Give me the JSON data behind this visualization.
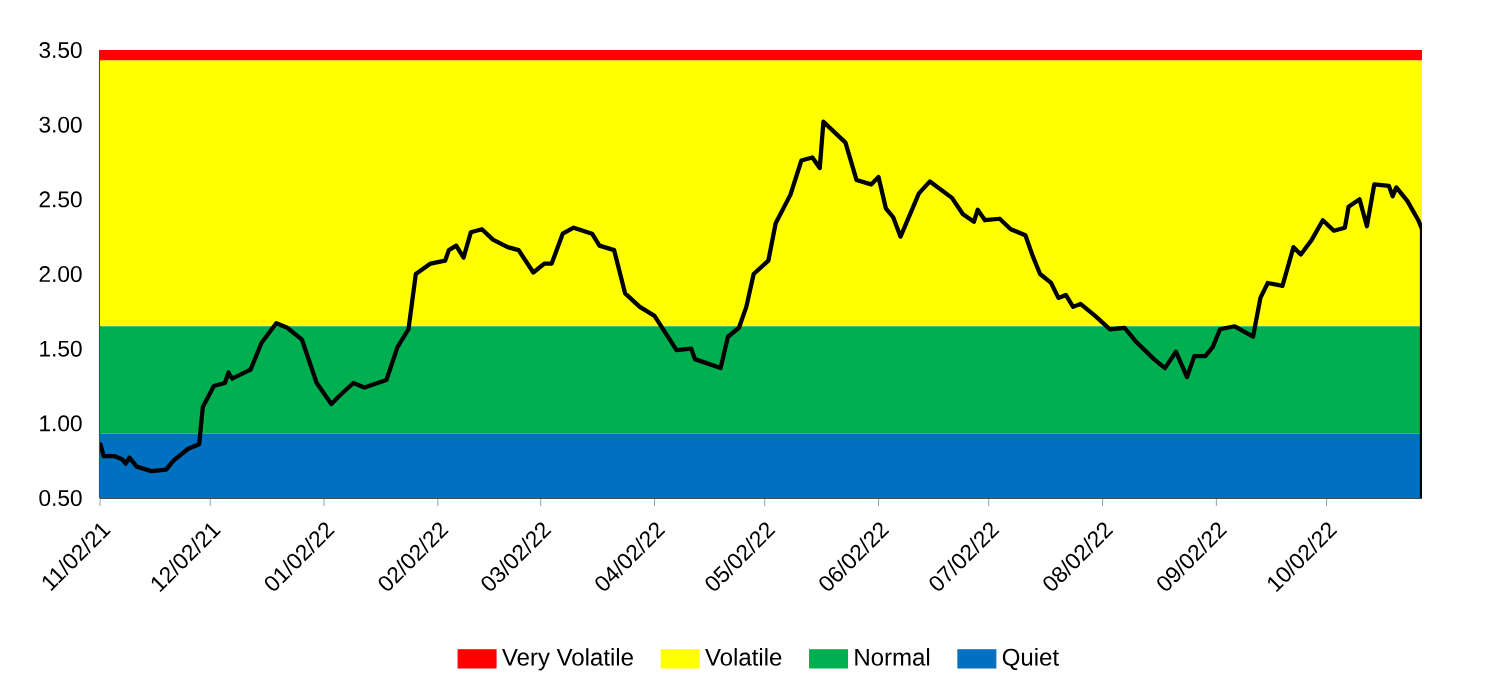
{
  "chart_data": {
    "type": "line",
    "x": [
      "2021-11-02",
      "2021-11-03",
      "2021-11-06",
      "2021-11-08",
      "2021-11-09",
      "2021-11-10",
      "2021-11-12",
      "2021-11-16",
      "2021-11-20",
      "2021-11-22",
      "2021-11-26",
      "2021-11-29",
      "2021-11-30",
      "2021-12-03",
      "2021-12-06",
      "2021-12-07",
      "2021-12-08",
      "2021-12-13",
      "2021-12-16",
      "2021-12-20",
      "2021-12-23",
      "2021-12-27",
      "2021-12-31",
      "2022-01-04",
      "2022-01-06",
      "2022-01-10",
      "2022-01-13",
      "2022-01-19",
      "2022-01-22",
      "2022-01-25",
      "2022-01-27",
      "2022-01-31",
      "2022-02-04",
      "2022-02-05",
      "2022-02-07",
      "2022-02-09",
      "2022-02-11",
      "2022-02-14",
      "2022-02-17",
      "2022-02-21",
      "2022-02-24",
      "2022-02-28",
      "2022-03-03",
      "2022-03-05",
      "2022-03-08",
      "2022-03-11",
      "2022-03-16",
      "2022-03-18",
      "2022-03-22",
      "2022-03-25",
      "2022-03-29",
      "2022-04-02",
      "2022-04-08",
      "2022-04-12",
      "2022-04-13",
      "2022-04-20",
      "2022-04-22",
      "2022-04-25",
      "2022-04-27",
      "2022-04-29",
      "2022-05-03",
      "2022-05-05",
      "2022-05-09",
      "2022-05-12",
      "2022-05-15",
      "2022-05-17",
      "2022-05-18",
      "2022-05-24",
      "2022-05-27",
      "2022-05-31",
      "2022-06-02",
      "2022-06-04",
      "2022-06-06",
      "2022-06-08",
      "2022-06-13",
      "2022-06-16",
      "2022-06-22",
      "2022-06-25",
      "2022-06-28",
      "2022-06-29",
      "2022-07-01",
      "2022-07-05",
      "2022-07-08",
      "2022-07-12",
      "2022-07-14",
      "2022-07-16",
      "2022-07-19",
      "2022-07-21",
      "2022-07-23",
      "2022-07-25",
      "2022-07-27",
      "2022-07-31",
      "2022-08-04",
      "2022-08-08",
      "2022-08-11",
      "2022-08-16",
      "2022-08-19",
      "2022-08-22",
      "2022-08-25",
      "2022-08-27",
      "2022-08-30",
      "2022-09-01",
      "2022-09-03",
      "2022-09-07",
      "2022-09-12",
      "2022-09-14",
      "2022-09-16",
      "2022-09-20",
      "2022-09-23",
      "2022-09-25",
      "2022-09-28",
      "2022-10-01",
      "2022-10-04",
      "2022-10-07",
      "2022-10-08",
      "2022-10-11",
      "2022-10-13",
      "2022-10-15",
      "2022-10-19",
      "2022-10-20",
      "2022-10-21",
      "2022-10-24",
      "2022-10-27",
      "2022-10-28",
      "2022-10-28"
    ],
    "series": [
      {
        "color": "#000000",
        "values": [
          0.87,
          0.78,
          0.78,
          0.76,
          0.73,
          0.77,
          0.71,
          0.68,
          0.69,
          0.75,
          0.83,
          0.86,
          1.11,
          1.25,
          1.27,
          1.34,
          1.3,
          1.36,
          1.54,
          1.67,
          1.64,
          1.56,
          1.27,
          1.13,
          1.18,
          1.27,
          1.24,
          1.29,
          1.51,
          1.63,
          2.0,
          2.07,
          2.09,
          2.16,
          2.19,
          2.11,
          2.28,
          2.3,
          2.23,
          2.18,
          2.16,
          2.01,
          2.07,
          2.07,
          2.27,
          2.31,
          2.27,
          2.19,
          2.16,
          1.87,
          1.78,
          1.72,
          1.49,
          1.5,
          1.43,
          1.37,
          1.58,
          1.64,
          1.78,
          2.0,
          2.09,
          2.34,
          2.53,
          2.76,
          2.78,
          2.71,
          3.02,
          2.88,
          2.63,
          2.6,
          2.65,
          2.44,
          2.38,
          2.25,
          2.54,
          2.62,
          2.51,
          2.4,
          2.35,
          2.43,
          2.36,
          2.37,
          2.3,
          2.26,
          2.12,
          2.0,
          1.94,
          1.84,
          1.86,
          1.78,
          1.8,
          1.72,
          1.63,
          1.64,
          1.55,
          1.43,
          1.37,
          1.48,
          1.31,
          1.45,
          1.45,
          1.51,
          1.63,
          1.65,
          1.58,
          1.84,
          1.94,
          1.92,
          2.18,
          2.13,
          2.23,
          2.36,
          2.29,
          2.31,
          2.45,
          2.5,
          2.32,
          2.6,
          2.59,
          2.52,
          2.58,
          2.49,
          2.36,
          2.3,
          0.5
        ]
      }
    ],
    "xlim": [
      "2021-11-02",
      "2022-10-28"
    ],
    "xticks": [
      {
        "value": "2021-11-02",
        "label": "11/02/21"
      },
      {
        "value": "2021-12-02",
        "label": "12/02/21"
      },
      {
        "value": "2022-01-02",
        "label": "01/02/22"
      },
      {
        "value": "2022-02-02",
        "label": "02/02/22"
      },
      {
        "value": "2022-03-02",
        "label": "03/02/22"
      },
      {
        "value": "2022-04-02",
        "label": "04/02/22"
      },
      {
        "value": "2022-05-02",
        "label": "05/02/22"
      },
      {
        "value": "2022-06-02",
        "label": "06/02/22"
      },
      {
        "value": "2022-07-02",
        "label": "07/02/22"
      },
      {
        "value": "2022-08-02",
        "label": "08/02/22"
      },
      {
        "value": "2022-09-02",
        "label": "09/02/22"
      },
      {
        "value": "2022-10-02",
        "label": "10/02/22"
      }
    ],
    "ylim": [
      0.5,
      3.5
    ],
    "yticks": [
      {
        "value": 0.5,
        "label": "0.50"
      },
      {
        "value": 1.0,
        "label": "1.00"
      },
      {
        "value": 1.5,
        "label": "1.50"
      },
      {
        "value": 2.0,
        "label": "2.00"
      },
      {
        "value": 2.5,
        "label": "2.50"
      },
      {
        "value": 3.0,
        "label": "3.00"
      },
      {
        "value": 3.5,
        "label": "3.50"
      }
    ],
    "bands": [
      {
        "axis": "y",
        "from": 3.43,
        "to": 3.5,
        "label": "Very Volatile",
        "color": "#ff0000"
      },
      {
        "axis": "y",
        "from": 1.65,
        "to": 3.43,
        "label": "Volatile",
        "color": "#ffff00"
      },
      {
        "axis": "y",
        "from": 0.93,
        "to": 1.65,
        "label": "Normal",
        "color": "#00b050"
      },
      {
        "axis": "y",
        "from": 0.5,
        "to": 0.93,
        "label": "Quiet",
        "color": "#0070c0"
      }
    ],
    "legend": "bottom",
    "grid": false
  }
}
